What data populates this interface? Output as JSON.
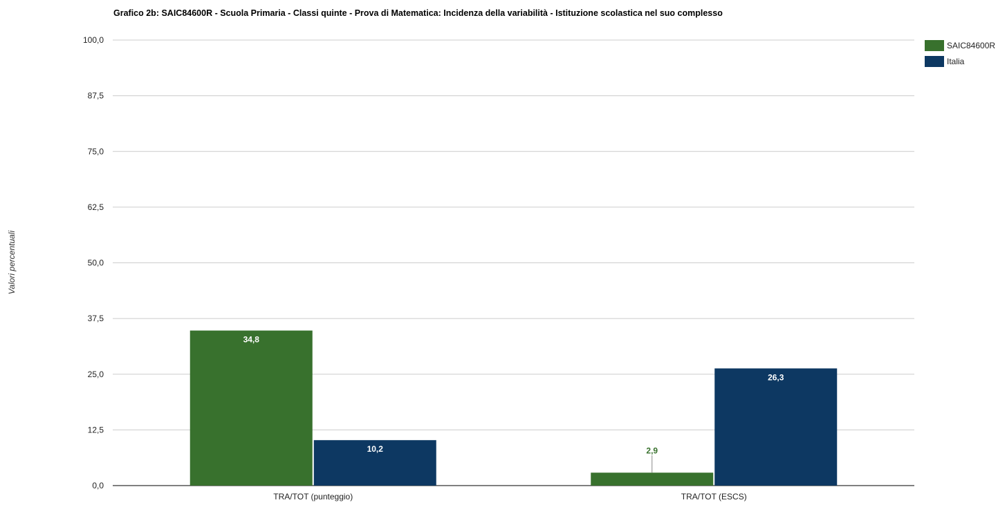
{
  "chart_data": {
    "type": "bar",
    "title": "Grafico 2b: SAIC84600R - Scuola Primaria - Classi quinte - Prova di Matematica: Incidenza della variabilità - Istituzione scolastica nel suo complesso",
    "xlabel": "",
    "ylabel": "Valori percentuali",
    "ylim": [
      0,
      100
    ],
    "yticks": [
      "0,0",
      "12,5",
      "25,0",
      "37,5",
      "50,0",
      "62,5",
      "75,0",
      "87,5",
      "100,0"
    ],
    "ytick_values": [
      0,
      12.5,
      25,
      37.5,
      50,
      62.5,
      75,
      87.5,
      100
    ],
    "categories": [
      "TRA/TOT (punteggio)",
      "TRA/TOT (ESCS)"
    ],
    "series": [
      {
        "name": "SAIC84600R",
        "color": "#38712d",
        "values": [
          34.8,
          2.9
        ],
        "labels": [
          "34,8",
          "2,9"
        ]
      },
      {
        "name": "Italia",
        "color": "#0d3862",
        "values": [
          10.2,
          26.3
        ],
        "labels": [
          "10,2",
          "26,3"
        ]
      }
    ],
    "grid": true,
    "legend_position": "top-right"
  }
}
